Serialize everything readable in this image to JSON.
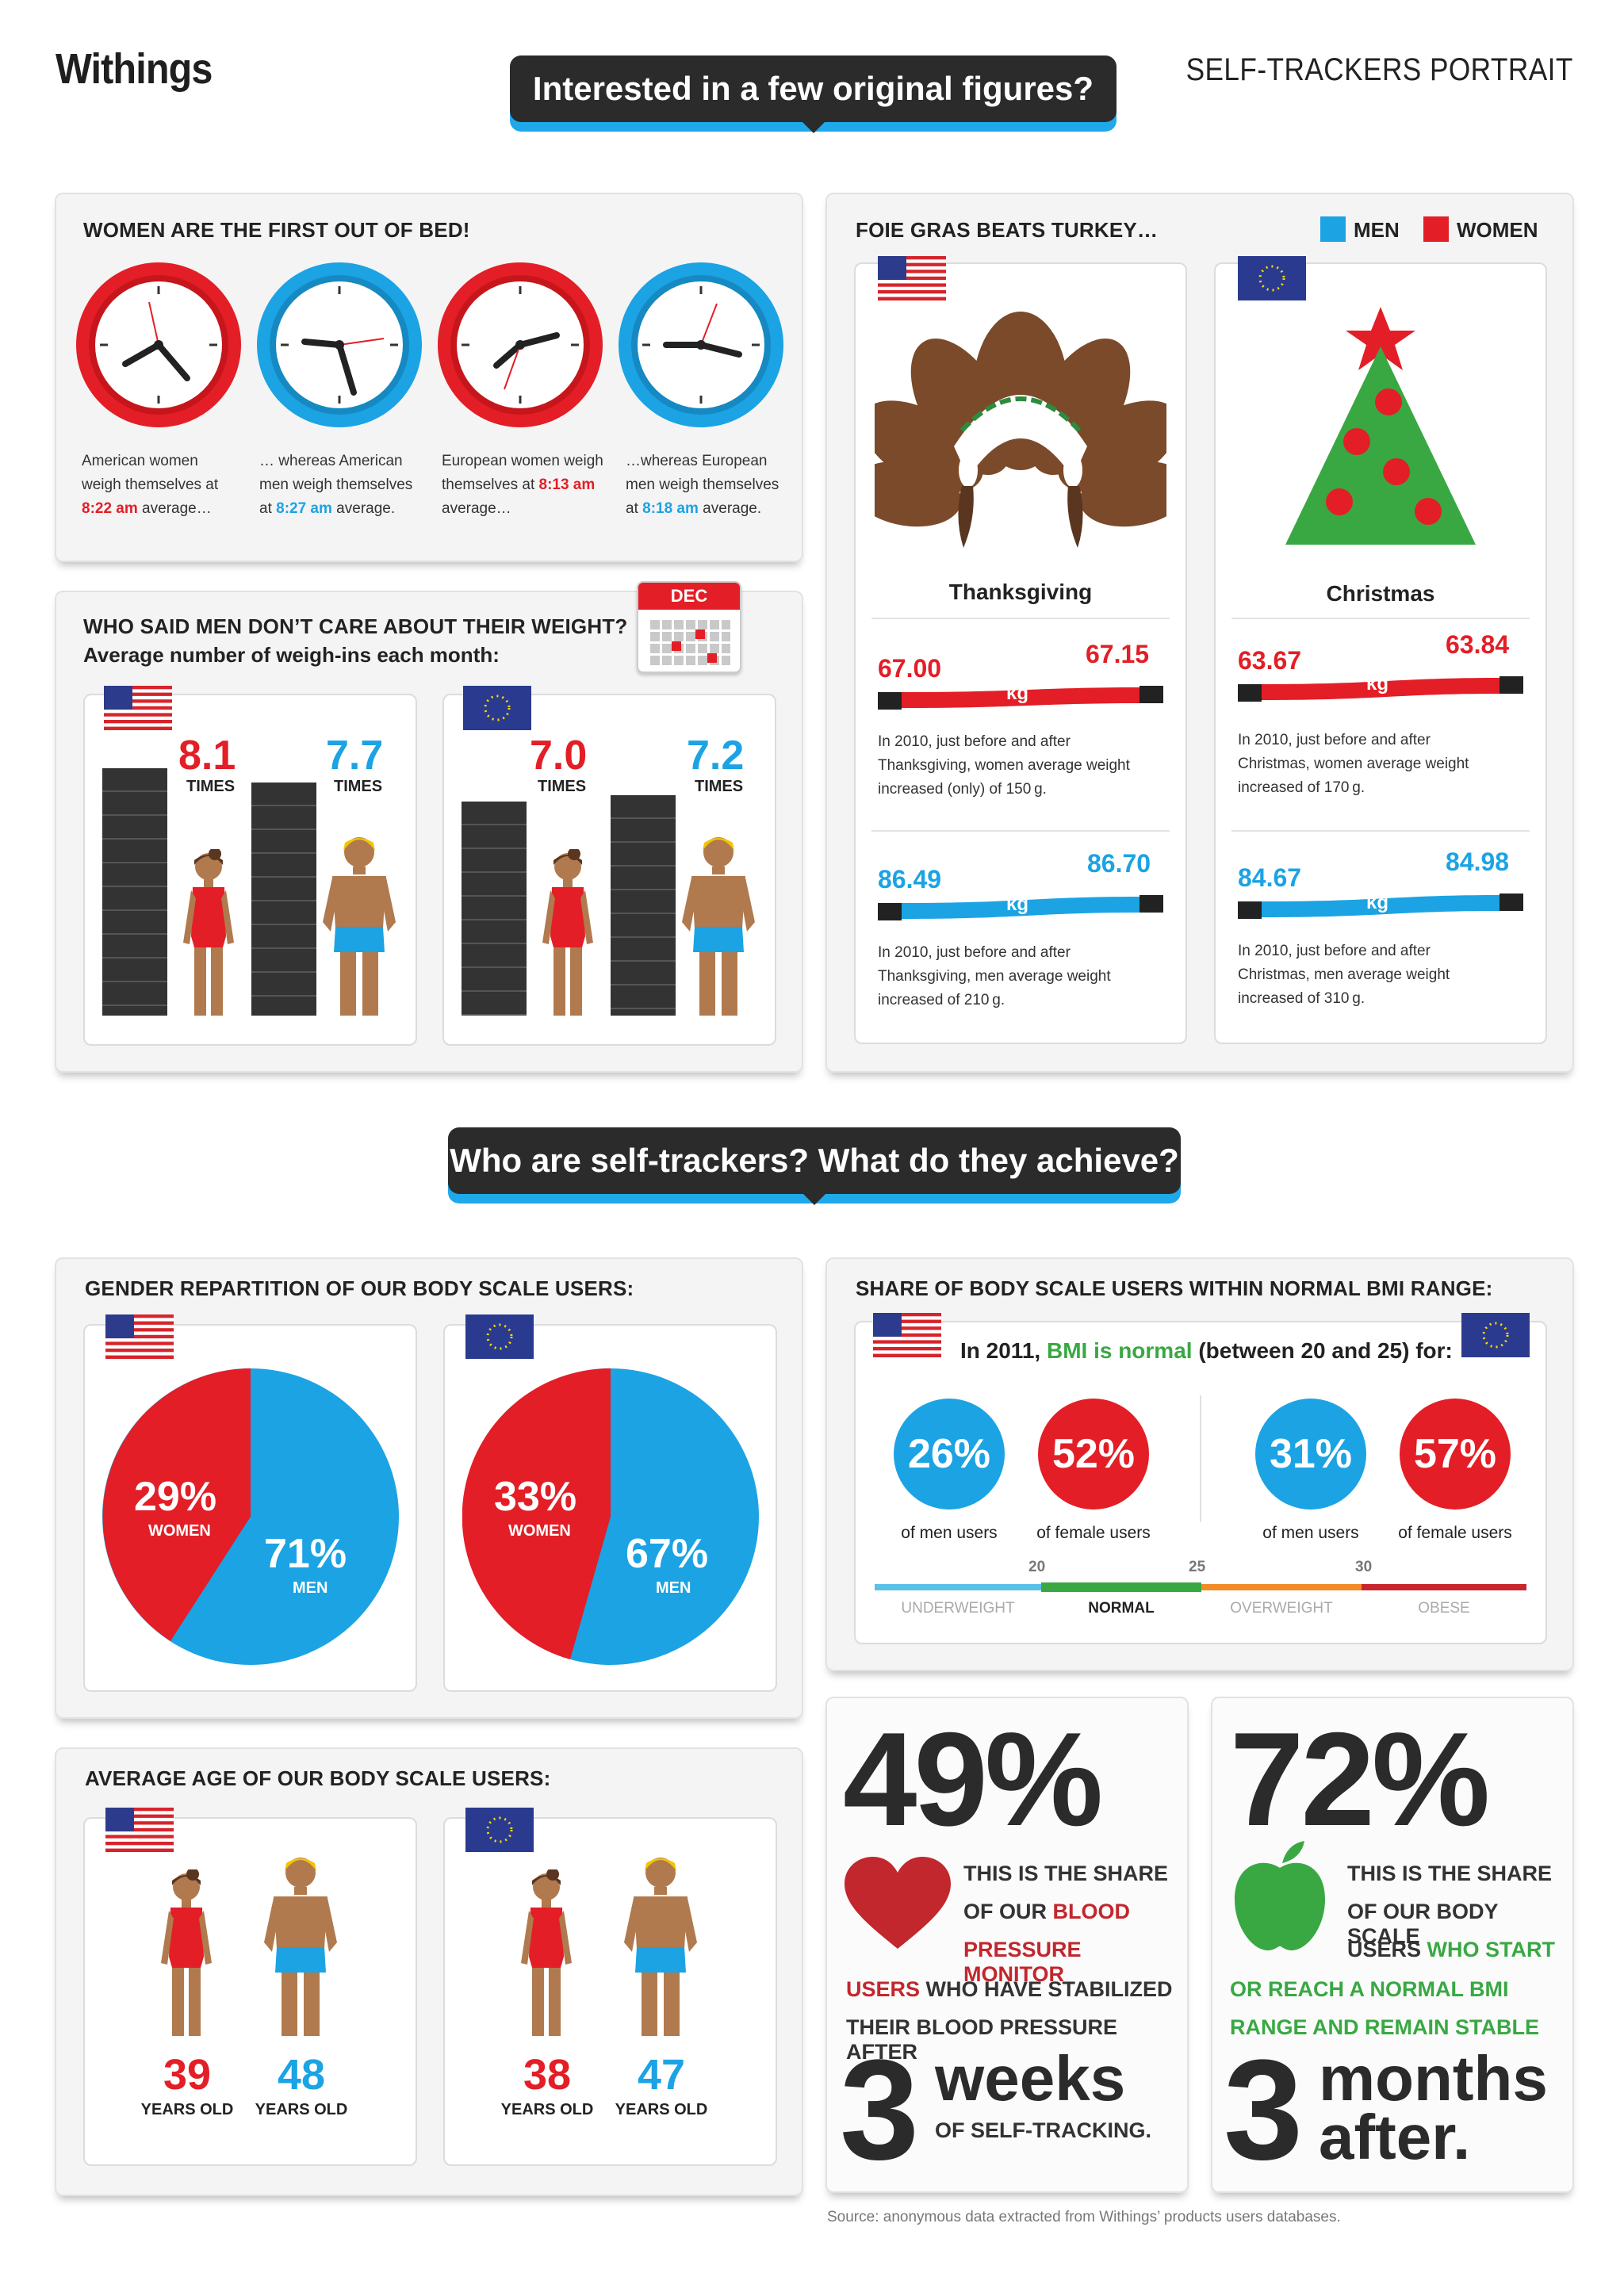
{
  "header": {
    "logo": "Withings",
    "banner": "Interested in a few original figures?",
    "right_title": "SELF-TRACKERS PORTRAIT"
  },
  "wake": {
    "title": "WOMEN ARE THE FIRST OUT OF BED!",
    "items": [
      {
        "pre": "American women weigh themselves at ",
        "time": "8:22 am",
        "post": " average…",
        "color": "#e31e26"
      },
      {
        "pre": "… whereas American men weigh themselves at ",
        "time": "8:27 am",
        "post": " average.",
        "color": "#1ba3e4"
      },
      {
        "pre": "European women weigh themselves at ",
        "time": "8:13 am",
        "post": " average…",
        "color": "#e31e26"
      },
      {
        "pre": "…whereas European men weigh themselves at ",
        "time": "8:18 am",
        "post": " average.",
        "color": "#1ba3e4"
      }
    ]
  },
  "weighins": {
    "title": "WHO SAID MEN DON’T CARE ABOUT THEIR WEIGHT?",
    "subtitle": "Average number of weigh-ins each month:",
    "calendar": "DEC",
    "times_label": "TIMES",
    "us_women": "8.1",
    "us_men": "7.7",
    "eu_women": "7.0",
    "eu_men": "7.2"
  },
  "holidays": {
    "title": "FOIE GRAS BEATS TURKEY…",
    "legend_men": "MEN",
    "legend_women": "WOMEN",
    "thanksgiving": "Thanksgiving",
    "christmas": "Christmas",
    "kg": "kg",
    "us_women_before": "67.00",
    "us_women_after": "67.15",
    "us_women_text": "In 2010, just before and after Thanksgiving, women average weight increased (only) of 150 g.",
    "us_men_before": "86.49",
    "us_men_after": "86.70",
    "us_men_text": "In 2010, just before and after Thanksgiving, men average weight increased of 210 g.",
    "eu_women_before": "63.67",
    "eu_women_after": "63.84",
    "eu_women_text": "In 2010, just before and after Christmas, women average weight increased of 170 g.",
    "eu_men_before": "84.67",
    "eu_men_after": "84.98",
    "eu_men_text": "In 2010, just before and after Christmas, men average weight increased of 310 g."
  },
  "banner2": "Who are self-trackers? What do they achieve?",
  "gender": {
    "title": "GENDER REPARTITION OF OUR BODY SCALE USERS:",
    "us_women": "29%",
    "us_men": "71%",
    "eu_women": "33%",
    "eu_men": "67%",
    "women_label": "WOMEN",
    "men_label": "MEN"
  },
  "bmi": {
    "title": "SHARE OF BODY SCALE USERS WITHIN NORMAL BMI RANGE:",
    "intro_a": "In 2011, ",
    "intro_b": "BMI is normal",
    "intro_c": " (between 20 and 25) for:",
    "us_men": "26%",
    "us_women": "52%",
    "eu_men": "31%",
    "eu_women": "57%",
    "men_label": "of men users",
    "women_label": "of female users",
    "ticks": [
      "20",
      "25",
      "30"
    ],
    "zones": [
      "UNDERWEIGHT",
      "NORMAL",
      "OVERWEIGHT",
      "OBESE"
    ]
  },
  "age": {
    "title": "AVERAGE AGE OF OUR BODY SCALE USERS:",
    "us_women": "39",
    "us_men": "48",
    "eu_women": "38",
    "eu_men": "47",
    "years_label": "YEARS OLD"
  },
  "bp": {
    "percent": "49%",
    "l1": "THIS IS THE SHARE",
    "l2a": "OF OUR ",
    "l2b": "BLOOD",
    "l3": "PRESSURE MONITOR",
    "l4a": "USERS",
    "l4b": " WHO HAVE STABILIZED",
    "l5": "THEIR BLOOD PRESSURE AFTER",
    "num": "3",
    "unit": "weeks",
    "tail": "OF SELF-TRACKING."
  },
  "bmi_stat": {
    "percent": "72%",
    "l1": "THIS IS THE SHARE",
    "l2": "OF OUR BODY SCALE",
    "l3a": "USERS ",
    "l3b": "WHO START",
    "l4": "OR REACH A NORMAL BMI",
    "l5": "RANGE AND REMAIN STABLE",
    "num": "3",
    "unit1": "months",
    "unit2": "after."
  },
  "source": "Source: anonymous data extracted from Withings’ products users databases.",
  "colors": {
    "red": "#e31e26",
    "blue": "#1ba3e4",
    "green": "#39a843",
    "dark": "#2b2b2b"
  }
}
